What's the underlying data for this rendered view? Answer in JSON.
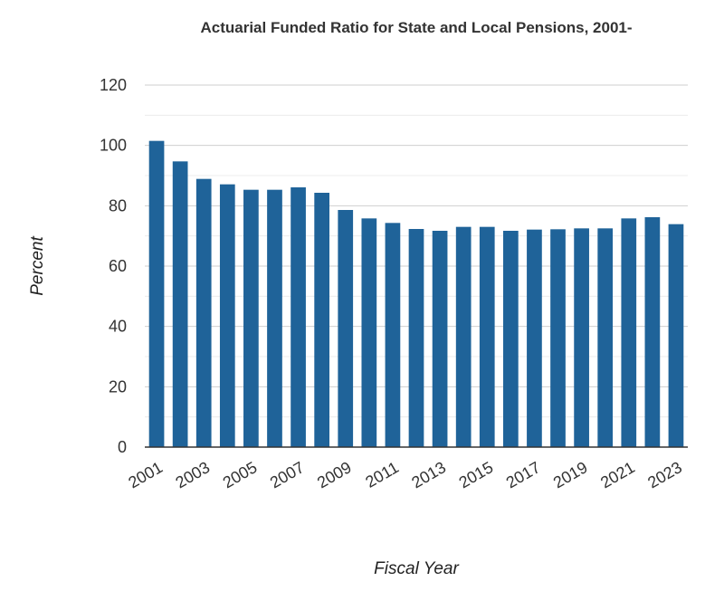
{
  "chart_data": {
    "type": "bar",
    "title": "Actuarial Funded Ratio for State and Local Pensions, 2001-",
    "xlabel": "Fiscal Year",
    "ylabel": "Percent",
    "ylim": [
      0,
      120
    ],
    "y_ticks": [
      "0",
      "20",
      "40",
      "60",
      "80",
      "100",
      "120"
    ],
    "categories": [
      "2001",
      "2002",
      "2003",
      "2004",
      "2005",
      "2006",
      "2007",
      "2008",
      "2009",
      "2010",
      "2011",
      "2012",
      "2013",
      "2014",
      "2015",
      "2016",
      "2017",
      "2018",
      "2019",
      "2020",
      "2021",
      "2022",
      "2023"
    ],
    "x_tick_labels": [
      "2001",
      "2003",
      "2005",
      "2007",
      "2009",
      "2011",
      "2013",
      "2015",
      "2017",
      "2019",
      "2021",
      "2023"
    ],
    "values": [
      101.5,
      94.7,
      88.9,
      87.1,
      85.3,
      85.3,
      86.1,
      84.3,
      78.6,
      75.8,
      74.3,
      72.3,
      71.7,
      73.0,
      73.0,
      71.7,
      72.1,
      72.2,
      72.5,
      72.5,
      75.8,
      76.2,
      73.9
    ],
    "grid": true,
    "legend": "none",
    "bar_color": "#1f6399"
  }
}
